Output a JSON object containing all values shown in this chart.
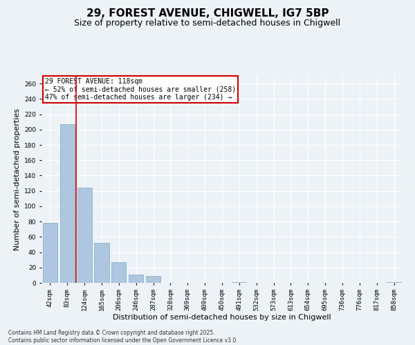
{
  "title": "29, FOREST AVENUE, CHIGWELL, IG7 5BP",
  "subtitle": "Size of property relative to semi-detached houses in Chigwell",
  "xlabel": "Distribution of semi-detached houses by size in Chigwell",
  "ylabel": "Number of semi-detached properties",
  "categories": [
    "42sqm",
    "83sqm",
    "124sqm",
    "165sqm",
    "206sqm",
    "246sqm",
    "287sqm",
    "328sqm",
    "369sqm",
    "409sqm",
    "450sqm",
    "491sqm",
    "532sqm",
    "573sqm",
    "613sqm",
    "654sqm",
    "695sqm",
    "736sqm",
    "776sqm",
    "817sqm",
    "858sqm"
  ],
  "values": [
    78,
    207,
    124,
    52,
    27,
    11,
    9,
    0,
    0,
    0,
    0,
    1,
    0,
    0,
    0,
    0,
    0,
    0,
    0,
    0,
    1
  ],
  "bar_color": "#aec6df",
  "bar_edge_color": "#7aaac8",
  "property_line_color": "#cc0000",
  "annotation_text": "29 FOREST AVENUE: 118sqm\n← 52% of semi-detached houses are smaller (258)\n47% of semi-detached houses are larger (234) →",
  "annotation_box_color": "#cc0000",
  "footer_text": "Contains HM Land Registry data © Crown copyright and database right 2025.\nContains public sector information licensed under the Open Government Licence v3.0.",
  "ylim": [
    0,
    270
  ],
  "yticks": [
    0,
    20,
    40,
    60,
    80,
    100,
    120,
    140,
    160,
    180,
    200,
    220,
    240,
    260
  ],
  "bg_color": "#edf2f7",
  "grid_color": "#ffffff",
  "title_fontsize": 11,
  "subtitle_fontsize": 9,
  "tick_fontsize": 6.5,
  "label_fontsize": 8,
  "footer_fontsize": 5.5
}
